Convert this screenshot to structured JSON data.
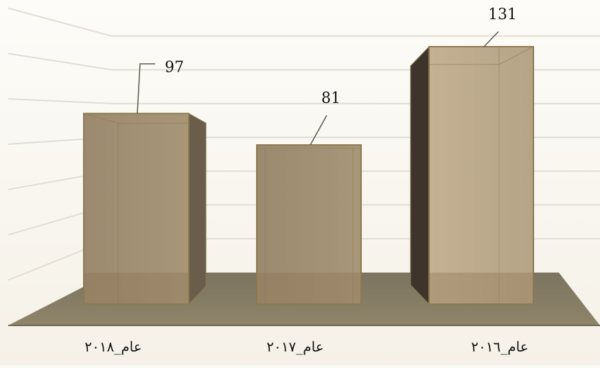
{
  "chart_data": {
    "type": "bar",
    "categories": [
      "العام ٢٠١٨",
      "العام ٢٠١٧",
      "العام ٢٠١٦"
    ],
    "category_labels": [
      "عام_٢٠١٨",
      "عام_٢٠١٧",
      "عام_٢٠١٦"
    ],
    "values": [
      97,
      81,
      131
    ],
    "data_labels": [
      "97",
      "81",
      "131"
    ],
    "title": "",
    "xlabel": "",
    "ylabel": "",
    "ylim": [
      0,
      140
    ],
    "grid": true,
    "legend": "none",
    "colors": {
      "bar_front": "#a08e74",
      "bar_front_light": "#bfae92",
      "bar_side": "#6b5d4b",
      "bar_side_dark": "#3e342b",
      "bar_top": "#b8a889",
      "bar_border": "#8a7a4e",
      "floor": "#8a8066",
      "floor_edge": "#6e664f",
      "grid": "#e2ddd3",
      "background": "#fbf9f4"
    }
  }
}
